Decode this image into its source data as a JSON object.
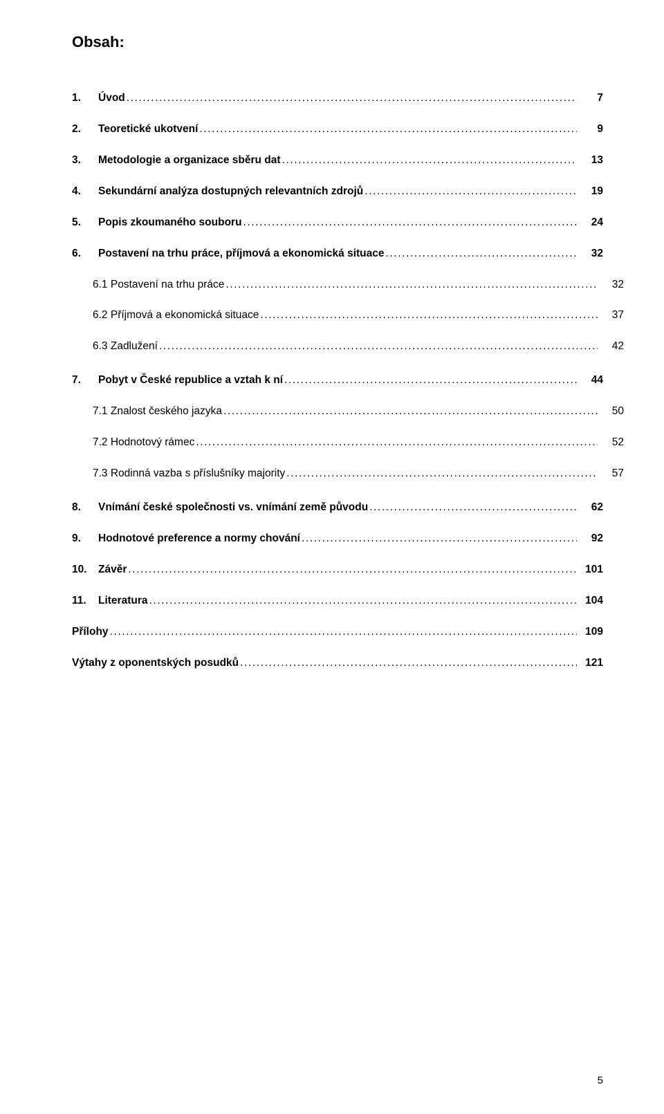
{
  "heading": "Obsah:",
  "page_number": "5",
  "entries": [
    {
      "num": "1.",
      "label": "Úvod",
      "page": "7",
      "bold": true,
      "sub": false
    },
    {
      "num": "2.",
      "label": "Teoretické ukotvení",
      "page": "9",
      "bold": true,
      "sub": false
    },
    {
      "num": "3.",
      "label": "Metodologie a organizace sběru dat",
      "page": "13",
      "bold": true,
      "sub": false
    },
    {
      "num": "4.",
      "label": "Sekundární analýza dostupných relevantních zdrojů",
      "page": "19",
      "bold": true,
      "sub": false
    },
    {
      "num": "5.",
      "label": "Popis zkoumaného souboru",
      "page": "24",
      "bold": true,
      "sub": false
    },
    {
      "num": "6.",
      "label": "Postavení na trhu práce, příjmová a ekonomická situace",
      "page": "32",
      "bold": true,
      "sub": false
    },
    {
      "num": "",
      "label": "6.1 Postavení na trhu práce",
      "page": "32",
      "bold": false,
      "sub": true,
      "noNum": true
    },
    {
      "num": "",
      "label": "6.2 Příjmová a ekonomická situace",
      "page": "37",
      "bold": false,
      "sub": true,
      "noNum": true
    },
    {
      "num": "",
      "label": "6.3 Zadlužení",
      "page": "42",
      "bold": false,
      "sub": true,
      "noNum": true
    },
    {
      "num": "7.",
      "label": "Pobyt v České republice a vztah k ní",
      "page": "44",
      "bold": true,
      "sub": false,
      "extraTop": true
    },
    {
      "num": "",
      "label": "7.1 Znalost českého jazyka",
      "page": "50",
      "bold": false,
      "sub": true,
      "noNum": true
    },
    {
      "num": "",
      "label": "7.2 Hodnotový rámec",
      "page": "52",
      "bold": false,
      "sub": true,
      "noNum": true
    },
    {
      "num": "",
      "label": "7.3 Rodinná vazba s příslušníky majority",
      "page": "57",
      "bold": false,
      "sub": true,
      "noNum": true
    },
    {
      "num": "8.",
      "label": "Vnímání české společnosti vs. vnímání země původu",
      "page": "62",
      "bold": true,
      "sub": false,
      "extraTop": true
    },
    {
      "num": "9.",
      "label": "Hodnotové preference a normy chování",
      "page": "92",
      "bold": true,
      "sub": false
    },
    {
      "num": "10.",
      "label": "Závěr",
      "page": "101",
      "bold": true,
      "sub": false
    },
    {
      "num": "11.",
      "label": "Literatura",
      "page": "104",
      "bold": true,
      "sub": false
    },
    {
      "num": "",
      "label": "Přílohy",
      "page": "109",
      "bold": true,
      "sub": false,
      "noNum": true
    },
    {
      "num": "",
      "label": "Výtahy z oponentských posudků",
      "page": "121",
      "bold": true,
      "sub": false,
      "noNum": true
    }
  ]
}
